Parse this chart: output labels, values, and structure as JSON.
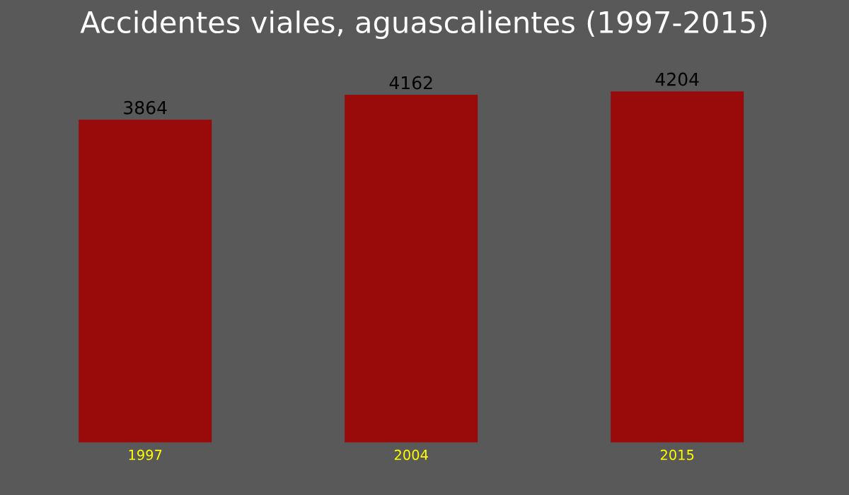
{
  "chart_data": {
    "type": "bar",
    "title": "Accidentes viales, aguascalientes (1997-2015)",
    "categories": [
      "1997",
      "2004",
      "2015"
    ],
    "values": [
      3864,
      4162,
      4204
    ],
    "color": "#990b0b",
    "tick_labels": "x",
    "data_labels": true,
    "grid": false,
    "legend": false
  }
}
